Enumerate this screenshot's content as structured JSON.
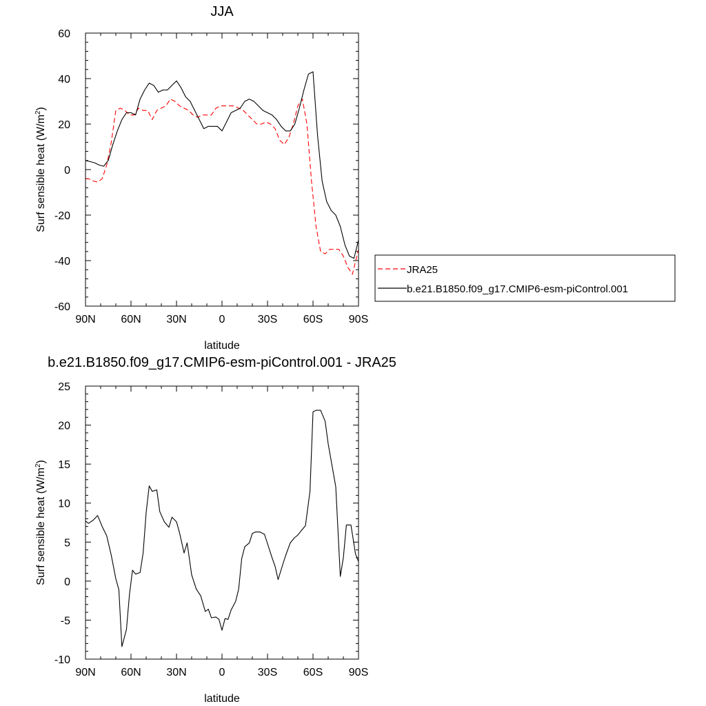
{
  "chart_data": [
    {
      "type": "line",
      "title": "JJA",
      "xlabel": "latitude",
      "ylabel": "Surf sensible heat (W/m²)",
      "ylabel_main": "Surf sensible heat (W/m",
      "ylabel_sup": "2",
      "ylabel_close": ")",
      "xlim": [
        90,
        -90
      ],
      "ylim": [
        -60,
        60
      ],
      "x_ticks": [
        90,
        60,
        30,
        0,
        -30,
        -60,
        -90
      ],
      "x_tick_labels": [
        "90N",
        "60N",
        "30N",
        "0",
        "30S",
        "60S",
        "90S"
      ],
      "y_ticks": [
        -60,
        -40,
        -20,
        0,
        20,
        40,
        60
      ],
      "y_tick_labels": [
        "-60",
        "-40",
        "-20",
        "0",
        "20",
        "40",
        "60"
      ],
      "legend_position": "right",
      "series": [
        {
          "name": "JRA25",
          "color": "#ff0000",
          "dash": "dashed",
          "x": [
            90,
            88,
            85,
            82,
            79,
            76,
            73,
            70,
            67,
            64,
            61,
            58,
            55,
            52,
            49,
            46,
            43,
            40,
            37,
            34,
            31,
            28,
            25,
            22,
            19,
            16,
            13,
            10,
            7,
            4,
            1,
            -2,
            -5,
            -8,
            -11,
            -14,
            -17,
            -20,
            -23,
            -26,
            -29,
            -32,
            -35,
            -38,
            -41,
            -44,
            -47,
            -50,
            -53,
            -56,
            -59,
            -62,
            -65,
            -68,
            -71,
            -74,
            -77,
            -80,
            -83,
            -86,
            -90
          ],
          "y": [
            -4,
            -4,
            -5,
            -5.5,
            -4,
            2,
            12,
            26,
            27,
            26,
            24,
            24,
            27,
            26,
            26,
            22,
            26,
            27,
            28,
            31,
            30,
            28,
            27,
            26,
            24,
            23,
            24,
            24,
            24,
            27,
            28,
            28,
            28,
            28,
            27,
            26,
            24,
            22,
            20,
            20,
            21,
            20,
            18,
            13,
            11,
            14,
            20,
            28,
            31,
            20,
            -5,
            -25,
            -36,
            -37,
            -35,
            -35,
            -35,
            -38,
            -43,
            -46,
            -35
          ]
        },
        {
          "name": "b.e21.B1850.f09_g17.CMIP6-esm-piControl.001",
          "color": "#000000",
          "dash": "solid",
          "x": [
            90,
            87,
            84,
            81,
            78,
            75,
            72,
            69,
            66,
            63,
            60,
            57,
            54,
            51,
            48,
            45,
            42,
            39,
            36,
            33,
            30,
            27,
            24,
            21,
            18,
            15,
            12,
            9,
            6,
            3,
            0,
            -3,
            -6,
            -9,
            -12,
            -15,
            -18,
            -21,
            -24,
            -27,
            -30,
            -33,
            -36,
            -39,
            -42,
            -45,
            -48,
            -51,
            -54,
            -57,
            -60,
            -63,
            -66,
            -69,
            -72,
            -75,
            -78,
            -81,
            -84,
            -87,
            -90
          ],
          "y": [
            4,
            3.5,
            3,
            2,
            1.5,
            4,
            11,
            17,
            22,
            25,
            25,
            24,
            31,
            35,
            38,
            37,
            34,
            35,
            35,
            37,
            39,
            36,
            32,
            30,
            26,
            22,
            18,
            19,
            19,
            19,
            17,
            21,
            25,
            26,
            27,
            30,
            31,
            30,
            28,
            26,
            25,
            24,
            22,
            19,
            17,
            17,
            20,
            27,
            35,
            42,
            43,
            15,
            -5,
            -14,
            -18,
            -20,
            -25,
            -33,
            -38,
            -39,
            -31
          ]
        }
      ]
    },
    {
      "type": "line",
      "title": "b.e21.B1850.f09_g17.CMIP6-esm-piControl.001 - JRA25",
      "xlabel": "latitude",
      "ylabel": "Surf sensible heat (W/m²)",
      "ylabel_main": "Surf sensible heat (W/m",
      "ylabel_sup": "2",
      "ylabel_close": ")",
      "xlim": [
        90,
        -90
      ],
      "ylim": [
        -10,
        25
      ],
      "x_ticks": [
        90,
        60,
        30,
        0,
        -30,
        -60,
        -90
      ],
      "x_tick_labels": [
        "90N",
        "60N",
        "30N",
        "0",
        "30S",
        "60S",
        "90S"
      ],
      "y_ticks": [
        -10,
        -5,
        0,
        5,
        10,
        15,
        20,
        25
      ],
      "y_tick_labels": [
        "-10",
        "-5",
        "0",
        "5",
        "10",
        "15",
        "20",
        "25"
      ],
      "series": [
        {
          "color": "#000000",
          "dash": "solid",
          "x": [
            90,
            88,
            85,
            82,
            79,
            76,
            73,
            70,
            68,
            66,
            63,
            61,
            59,
            57,
            54,
            52,
            50,
            48,
            46,
            43,
            41,
            38,
            35,
            33,
            30,
            28,
            25,
            23,
            20,
            17,
            14,
            11,
            9,
            7,
            4,
            2,
            0,
            -2,
            -4,
            -6,
            -9,
            -11,
            -13,
            -15,
            -18,
            -20,
            -22,
            -25,
            -28,
            -30,
            -33,
            -35,
            -37,
            -40,
            -42,
            -45,
            -48,
            -50,
            -52,
            -55,
            -58,
            -60,
            -62,
            -65,
            -68,
            -70,
            -73,
            -75,
            -78,
            -80,
            -82,
            -85,
            -88,
            -90
          ],
          "y": [
            7.7,
            7.4,
            7.8,
            8.4,
            7,
            5.8,
            3.3,
            0.3,
            -1.1,
            -8.4,
            -6.2,
            -1.7,
            1.4,
            0.9,
            1.1,
            3.6,
            8.8,
            12.2,
            11.5,
            11.7,
            8.9,
            7.6,
            6.9,
            8.2,
            7.6,
            6.2,
            3.6,
            4.9,
            0.8,
            -1,
            -1.9,
            -3.9,
            -3.6,
            -4.7,
            -4.6,
            -4.9,
            -6.3,
            -4.8,
            -4.9,
            -3.7,
            -2.6,
            -1,
            2.9,
            4.4,
            4.9,
            6.1,
            6.3,
            6.3,
            6,
            4.8,
            3,
            1.9,
            0.2,
            2.1,
            3.3,
            4.9,
            5.6,
            5.9,
            6.4,
            7.1,
            11.5,
            21.7,
            21.9,
            21.9,
            20.5,
            17.6,
            14.3,
            12.1,
            0.6,
            3,
            7.2,
            7.2,
            3.5,
            2.5
          ]
        }
      ]
    }
  ]
}
